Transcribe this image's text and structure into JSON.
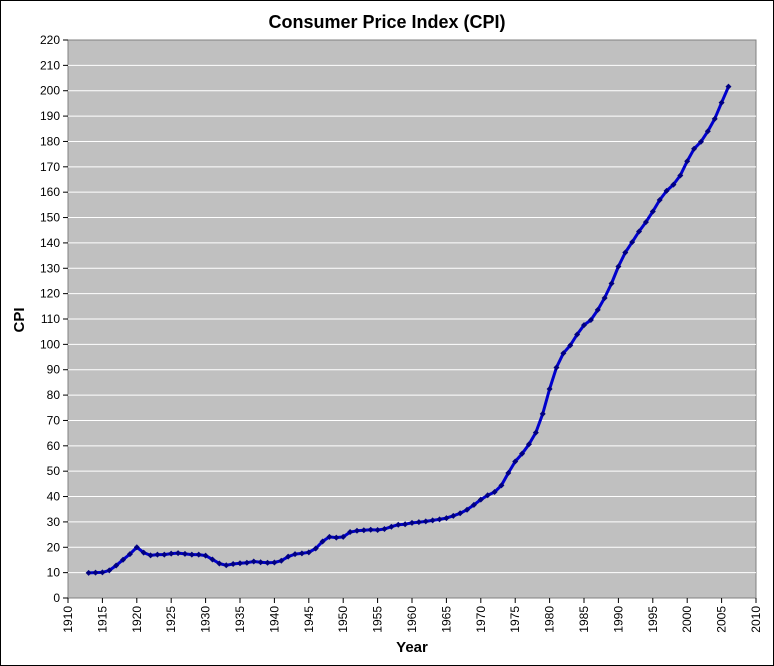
{
  "chart_data": {
    "type": "line",
    "title": "Consumer Price Index (CPI)",
    "xlabel": "Year",
    "ylabel": "CPI",
    "xlim": [
      1910,
      2010
    ],
    "ylim": [
      0,
      220
    ],
    "x_ticks": [
      "1910",
      "1915",
      "1920",
      "1925",
      "1930",
      "1935",
      "1940",
      "1945",
      "1950",
      "1955",
      "1960",
      "1965",
      "1970",
      "1975",
      "1980",
      "1985",
      "1990",
      "1995",
      "2000",
      "2005",
      "2010"
    ],
    "y_ticks": [
      "0",
      "10",
      "20",
      "30",
      "40",
      "50",
      "60",
      "70",
      "80",
      "90",
      "100",
      "110",
      "120",
      "130",
      "140",
      "150",
      "160",
      "170",
      "180",
      "190",
      "200",
      "210",
      "220"
    ],
    "grid": "horizontal",
    "legend": "none",
    "colors": {
      "plot_background": "#c0c0c0",
      "line": "#0000cc",
      "marker": "#000080",
      "gridline": "#ffffff"
    },
    "series": [
      {
        "x": [
          1913,
          1914,
          1915,
          1916,
          1917,
          1918,
          1919,
          1920,
          1921,
          1922,
          1923,
          1924,
          1925,
          1926,
          1927,
          1928,
          1929,
          1930,
          1931,
          1932,
          1933,
          1934,
          1935,
          1936,
          1937,
          1938,
          1939,
          1940,
          1941,
          1942,
          1943,
          1944,
          1945,
          1946,
          1947,
          1948,
          1949,
          1950,
          1951,
          1952,
          1953,
          1954,
          1955,
          1956,
          1957,
          1958,
          1959,
          1960,
          1961,
          1962,
          1963,
          1964,
          1965,
          1966,
          1967,
          1968,
          1969,
          1970,
          1971,
          1972,
          1973,
          1974,
          1975,
          1976,
          1977,
          1978,
          1979,
          1980,
          1981,
          1982,
          1983,
          1984,
          1985,
          1986,
          1987,
          1988,
          1989,
          1990,
          1991,
          1992,
          1993,
          1994,
          1995,
          1996,
          1997,
          1998,
          1999,
          2000,
          2001,
          2002,
          2003,
          2004,
          2005,
          2006
        ],
        "y": [
          9.9,
          10.0,
          10.1,
          10.9,
          12.8,
          15.1,
          17.3,
          20.0,
          17.9,
          16.8,
          17.1,
          17.1,
          17.5,
          17.7,
          17.4,
          17.1,
          17.1,
          16.7,
          15.2,
          13.6,
          12.9,
          13.4,
          13.7,
          13.9,
          14.4,
          14.1,
          13.9,
          14.0,
          14.7,
          16.3,
          17.3,
          17.6,
          18.0,
          19.5,
          22.3,
          24.1,
          23.8,
          24.1,
          26.0,
          26.5,
          26.7,
          26.9,
          26.8,
          27.2,
          28.1,
          28.9,
          29.1,
          29.6,
          29.9,
          30.2,
          30.6,
          31.0,
          31.5,
          32.4,
          33.4,
          34.8,
          36.7,
          38.8,
          40.5,
          41.8,
          44.4,
          49.3,
          53.8,
          56.9,
          60.6,
          65.2,
          72.6,
          82.4,
          90.9,
          96.5,
          99.6,
          103.9,
          107.6,
          109.6,
          113.6,
          118.3,
          124.0,
          130.7,
          136.2,
          140.3,
          144.5,
          148.2,
          152.4,
          156.9,
          160.5,
          163.0,
          166.6,
          172.2,
          177.1,
          179.9,
          184.0,
          188.9,
          195.3,
          201.6
        ]
      }
    ]
  }
}
